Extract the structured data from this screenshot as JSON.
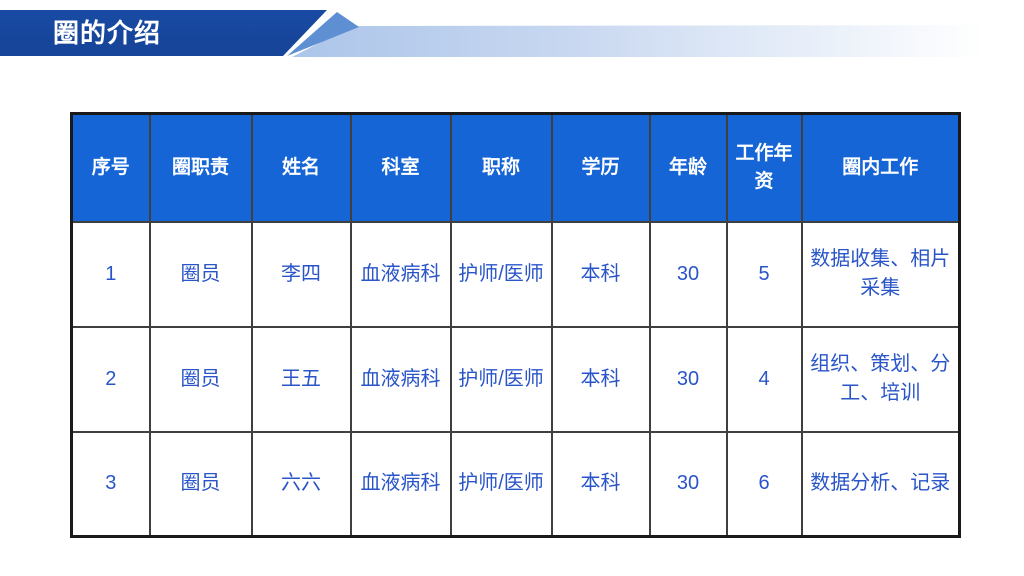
{
  "slide_title": "圈的介绍",
  "colors": {
    "banner_bg": "#16459A",
    "ribbon_start": "#8FB2E4",
    "ribbon_fold": "#5E8FD3",
    "table_header_bg": "#1565D6",
    "table_header_text": "#FFFFFF",
    "cell_text": "#2A55C9",
    "border_inner": "#3F3F3F",
    "border_outer": "#1A1A1A"
  },
  "table": {
    "headers": [
      "序号",
      "圈职责",
      "姓名",
      "科室",
      "职称",
      "学历",
      "年龄",
      "工作年资",
      "圈内工作"
    ],
    "rows": [
      [
        "1",
        "圈员",
        "李四",
        "血液病科",
        "护师/医师",
        "本科",
        "30",
        "5",
        "数据收集、相片采集"
      ],
      [
        "2",
        "圈员",
        "王五",
        "血液病科",
        "护师/医师",
        "本科",
        "30",
        "4",
        "组织、策划、分工、培训"
      ],
      [
        "3",
        "圈员",
        "六六",
        "血液病科",
        "护师/医师",
        "本科",
        "30",
        "6",
        "数据分析、记录"
      ]
    ]
  }
}
